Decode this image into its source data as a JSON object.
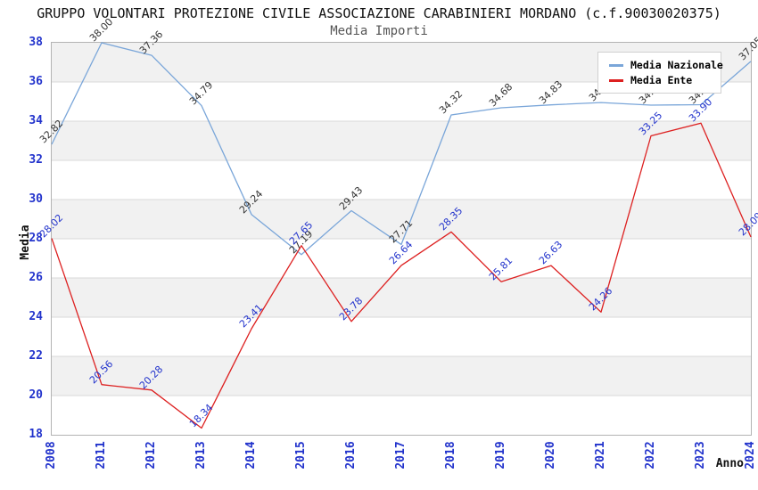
{
  "title": "GRUPPO VOLONTARI PROTEZIONE CIVILE ASSOCIAZIONE CARABINIERI MORDANO (c.f.90030020375)",
  "subtitle": "Media Importi",
  "axes": {
    "y_label": "Media",
    "x_label": "Anno"
  },
  "legend": {
    "items": [
      {
        "label": "Media Nazionale",
        "color": "#7aa6d9"
      },
      {
        "label": "Media Ente",
        "color": "#dd2020"
      }
    ]
  },
  "colors": {
    "nazionale_line": "#7aa6d9",
    "ente_line": "#dd2020",
    "tick_text": "#2233cc",
    "nazionale_label_text": "#333333",
    "ente_label_text": "#2233cc",
    "band_gray": "#f1f1f1",
    "grid_line": "#d9d9d9",
    "plot_border": "#b3b3b3"
  },
  "chart_data": {
    "type": "line",
    "title": "GRUPPO VOLONTARI PROTEZIONE CIVILE ASSOCIAZIONE CARABINIERI MORDANO (c.f.90030020375)",
    "subtitle": "Media Importi",
    "xlabel": "Anno",
    "ylabel": "Media",
    "ylim": [
      18,
      38
    ],
    "y_ticks": [
      38,
      36,
      34,
      32,
      30,
      28,
      26,
      24,
      22,
      20,
      18
    ],
    "grid": true,
    "legend_position": "top-right",
    "categories": [
      "2008",
      "2011",
      "2012",
      "2013",
      "2014",
      "2015",
      "2016",
      "2017",
      "2018",
      "2019",
      "2020",
      "2021",
      "2022",
      "2023",
      "2024"
    ],
    "series": [
      {
        "name": "Media Nazionale",
        "color": "#7aa6d9",
        "label_color": "#333333",
        "values": [
          32.82,
          38.0,
          37.36,
          34.79,
          29.24,
          27.19,
          29.43,
          27.71,
          34.32,
          34.68,
          34.83,
          34.95,
          34.82,
          34.84,
          37.05
        ],
        "labels": [
          "32.82",
          "38.00",
          "37.36",
          "34.79",
          "29.24",
          "27.19",
          "29.43",
          "27.71",
          "34.32",
          "34.68",
          "34.83",
          "34.95",
          "34.82",
          "34.84",
          "37.05"
        ]
      },
      {
        "name": "Media Ente",
        "color": "#dd2020",
        "label_color": "#2233cc",
        "values": [
          28.02,
          20.56,
          20.28,
          18.34,
          23.41,
          27.65,
          23.78,
          26.64,
          28.35,
          25.81,
          26.63,
          24.26,
          33.25,
          33.9,
          28.09
        ],
        "labels": [
          "28.02",
          "20.56",
          "20.28",
          "18.34",
          "23.41",
          "27.65",
          "23.78",
          "26.64",
          "28.35",
          "25.81",
          "26.63",
          "24.26",
          "33.25",
          "33.90",
          "28.09"
        ]
      }
    ]
  }
}
